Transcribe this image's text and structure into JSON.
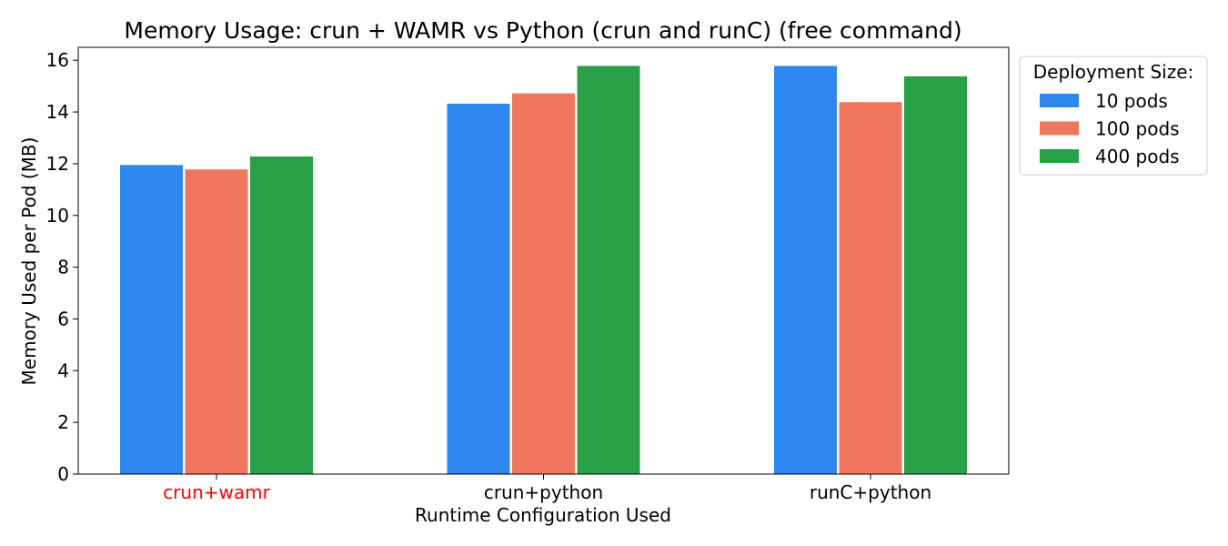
{
  "chart_data": {
    "type": "bar",
    "title": "Memory Usage: crun + WAMR vs Python (crun and runC) (free command)",
    "xlabel": "Runtime Configuration Used",
    "ylabel": "Memory Used per Pod (MB)",
    "categories": [
      "crun+wamr",
      "crun+python",
      "runC+python"
    ],
    "category_colors": [
      "#ff0000",
      "#000000",
      "#000000"
    ],
    "yticks": [
      0,
      2,
      4,
      6,
      8,
      10,
      12,
      14,
      16
    ],
    "ylim": [
      0,
      16.5
    ],
    "grid": false,
    "legend": {
      "title": "Deployment Size:",
      "placement": "outside-top-right"
    },
    "series": [
      {
        "name": "10 pods",
        "color": "#2e86ef",
        "values": [
          11.95,
          14.32,
          15.78
        ]
      },
      {
        "name": "100 pods",
        "color": "#ee775d",
        "values": [
          11.78,
          14.72,
          14.38
        ]
      },
      {
        "name": "400 pods",
        "color": "#27a046",
        "values": [
          12.28,
          15.78,
          15.38
        ]
      }
    ]
  }
}
